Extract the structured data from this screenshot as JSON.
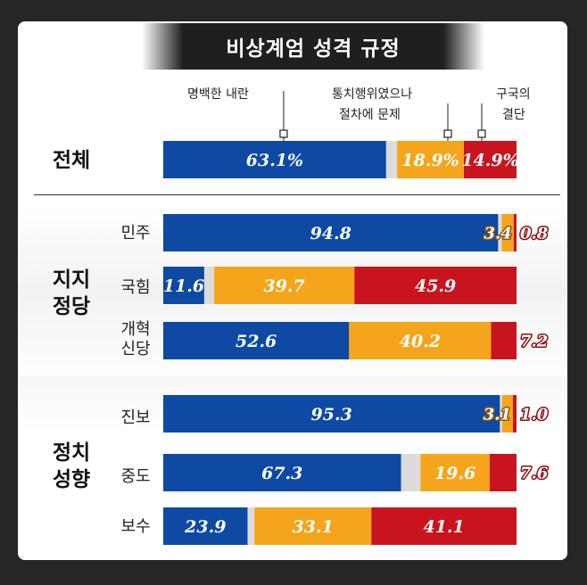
{
  "title": "비상계엄 성격 규정",
  "callouts": {
    "clear_rebellion": "명백한 내란",
    "governing_act_line1": "통치행위였으나",
    "governing_act_line2": "절차에 문제",
    "national_salvation_line1": "구국의",
    "national_salvation_line2": "결단"
  },
  "groups": {
    "overall": "전체",
    "party_line1": "지지",
    "party_line2": "정당",
    "ideology_line1": "정치",
    "ideology_line2": "성향"
  },
  "colors": {
    "blue": "#0e4aa3",
    "orange": "#f4a51c",
    "red": "#c8141e",
    "gray": "#dcdcdc"
  },
  "chart_data": {
    "type": "bar",
    "orientation": "horizontal-stacked",
    "title": "비상계엄 성격 규정",
    "series": [
      {
        "name": "명백한 내란",
        "color": "#0e4aa3"
      },
      {
        "name": "통치행위였으나 절차에 문제",
        "color": "#f4a51c"
      },
      {
        "name": "구국의 결단",
        "color": "#c8141e"
      }
    ],
    "rows": [
      {
        "label": "전체",
        "values": [
          63.1,
          18.9,
          14.9
        ],
        "labels": [
          "63.1%",
          "18.9%",
          "14.9%"
        ]
      },
      {
        "label": "민주",
        "values": [
          94.8,
          3.4,
          0.8
        ],
        "labels": [
          "94.8",
          "3.4",
          "0.8"
        ]
      },
      {
        "label": "국힘",
        "values": [
          11.6,
          39.7,
          45.9
        ],
        "labels": [
          "11.6",
          "39.7",
          "45.9"
        ]
      },
      {
        "label": "개혁 신당",
        "label_line1": "개혁",
        "label_line2": "신당",
        "values": [
          52.6,
          40.2,
          7.2
        ],
        "labels": [
          "52.6",
          "40.2",
          "7.2"
        ]
      },
      {
        "label": "진보",
        "values": [
          95.3,
          3.1,
          1.0
        ],
        "labels": [
          "95.3",
          "3.1",
          "1.0"
        ]
      },
      {
        "label": "중도",
        "values": [
          67.3,
          19.6,
          7.6
        ],
        "labels": [
          "67.3",
          "19.6",
          "7.6"
        ]
      },
      {
        "label": "보수",
        "values": [
          23.9,
          33.1,
          41.1
        ],
        "labels": [
          "23.9",
          "33.1",
          "41.1"
        ]
      }
    ]
  }
}
